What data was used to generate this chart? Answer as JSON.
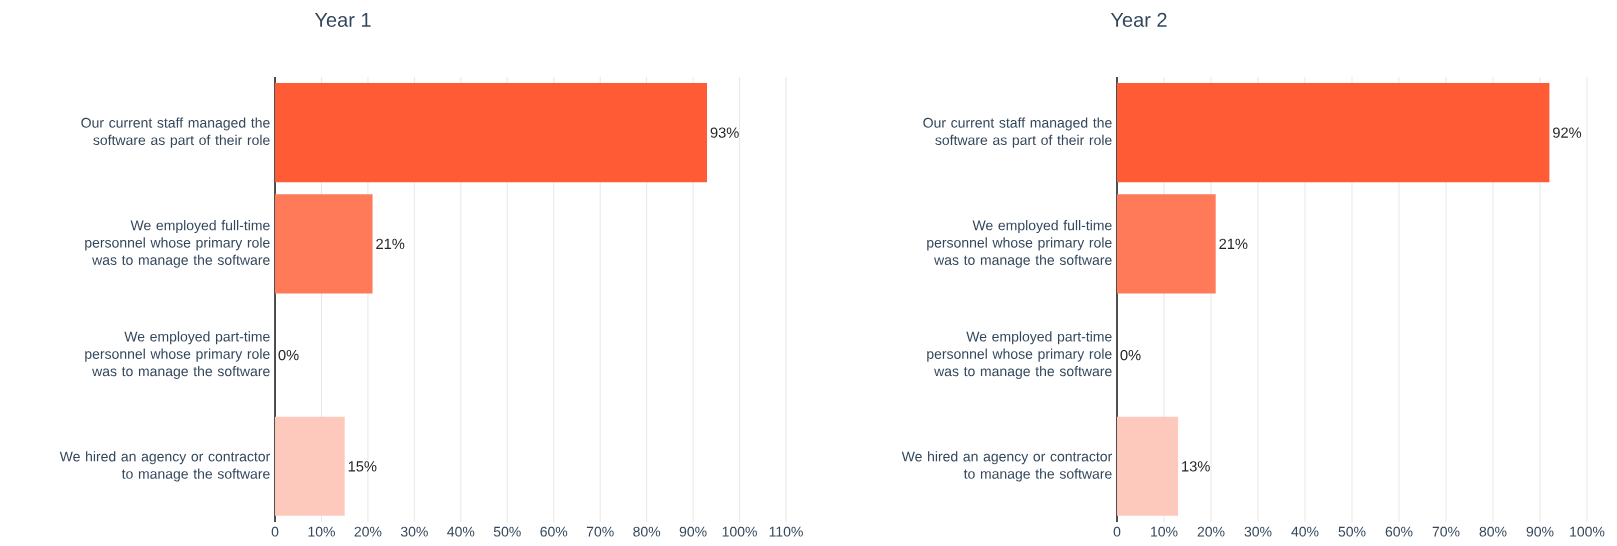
{
  "chart_data": [
    {
      "type": "bar",
      "orientation": "horizontal",
      "title": "Year 1",
      "categories": [
        "Our current staff managed the software as part of their role",
        "We employed full-time personnel whose primary role was to manage the software",
        "We employed part-time personnel whose primary role was to manage the software",
        "We hired an agency or contractor to manage the software"
      ],
      "values": [
        93,
        21,
        0,
        15
      ],
      "value_labels": [
        "93%",
        "21%",
        "0%",
        "15%"
      ],
      "colors": [
        "#ff5c35",
        "#ff7a59",
        "#ffa58e",
        "#fcc9bc"
      ],
      "xlim": [
        0,
        110
      ],
      "xticks": [
        0,
        {
          "value": 10,
          "label": "10%"
        },
        {
          "value": 20,
          "label": "20%"
        },
        {
          "value": 30,
          "label": "30%"
        },
        {
          "value": 40,
          "label": "40%"
        },
        {
          "value": 50,
          "label": "50%"
        },
        {
          "value": 60,
          "label": "60%"
        },
        {
          "value": 70,
          "label": "70%"
        },
        {
          "value": 80,
          "label": "80%"
        },
        {
          "value": 90,
          "label": "90%"
        },
        {
          "value": 100,
          "label": "100%"
        },
        {
          "value": 110,
          "label": "110%"
        }
      ],
      "grid": "x"
    },
    {
      "type": "bar",
      "orientation": "horizontal",
      "title": "Year 2",
      "categories": [
        "Our current staff managed the software as part of their role",
        "We employed full-time personnel whose primary role was to manage the software",
        "We employed part-time personnel whose primary role was to manage the software",
        "We hired an agency or contractor to manage the software"
      ],
      "values": [
        92,
        21,
        0,
        13
      ],
      "value_labels": [
        "92%",
        "21%",
        "0%",
        "13%"
      ],
      "colors": [
        "#ff5c35",
        "#ff7a59",
        "#ffa58e",
        "#fcc9bc"
      ],
      "xlim": [
        0,
        100
      ],
      "xticks": [
        0,
        {
          "value": 10,
          "label": "10%"
        },
        {
          "value": 20,
          "label": "20%"
        },
        {
          "value": 30,
          "label": "30%"
        },
        {
          "value": 40,
          "label": "40%"
        },
        {
          "value": 50,
          "label": "50%"
        },
        {
          "value": 60,
          "label": "60%"
        },
        {
          "value": 70,
          "label": "70%"
        },
        {
          "value": 80,
          "label": "80%"
        },
        {
          "value": 90,
          "label": "90%"
        },
        {
          "value": 100,
          "label": "100%"
        }
      ],
      "grid": "x"
    }
  ]
}
